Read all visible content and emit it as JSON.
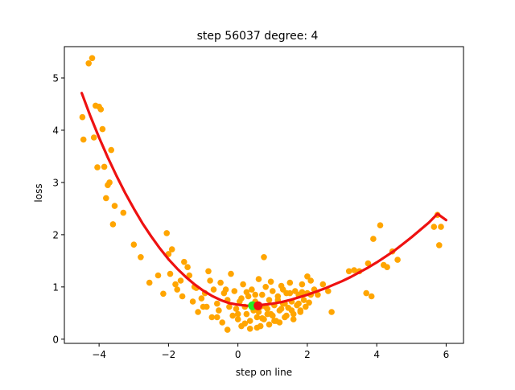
{
  "chart_data": {
    "type": "scatter",
    "title": "step 56037   degree: 4",
    "xlabel": "step on line",
    "ylabel": "loss",
    "xlim": [
      -5.0,
      6.5
    ],
    "ylim": [
      -0.08,
      5.6
    ],
    "xticks": [
      -4,
      -2,
      0,
      2,
      4,
      6
    ],
    "xtick_labels": [
      "−4",
      "−2",
      "0",
      "2",
      "4",
      "6"
    ],
    "yticks": [
      0,
      1,
      2,
      3,
      4,
      5
    ],
    "ytick_labels": [
      "0",
      "1",
      "2",
      "3",
      "4",
      "5"
    ],
    "grid": false,
    "legend": "none",
    "colors": {
      "points": "#ffa500",
      "curve": "#ee1111",
      "current_marker": "#22ee22",
      "minimum_marker": "#ee1111",
      "axes": "#000000"
    },
    "series": [
      {
        "kind": "points",
        "x": [
          -4.3,
          -4.2,
          -4.1,
          -4.0,
          -3.95,
          -4.48,
          -4.45,
          -4.15,
          -3.9,
          -3.85,
          -3.75,
          -3.55,
          -4.05,
          -3.65,
          -3.7,
          -3.8,
          -3.6,
          -3.3,
          -3.0,
          -2.8,
          -2.55,
          -2.3,
          -2.05,
          -1.95,
          -1.9,
          -1.55,
          -1.45,
          -2.15,
          -2.0,
          -1.8,
          -1.75,
          -1.65,
          -1.6,
          -1.4,
          -1.3,
          -1.2,
          -1.15,
          -1.05,
          -0.95,
          -0.9,
          -0.8,
          -0.75,
          -0.7,
          -0.6,
          -0.55,
          -0.5,
          -0.45,
          -0.4,
          -0.3,
          -0.25,
          -0.2,
          -0.15,
          -0.1,
          -0.05,
          0.0,
          0.05,
          0.1,
          0.15,
          0.2,
          0.25,
          0.3,
          0.35,
          0.4,
          0.45,
          0.5,
          0.55,
          0.6,
          0.65,
          0.7,
          0.75,
          0.8,
          0.85,
          0.9,
          0.95,
          1.0,
          1.05,
          1.1,
          1.15,
          1.2,
          1.25,
          1.3,
          1.35,
          1.4,
          1.45,
          1.5,
          1.55,
          1.6,
          1.65,
          1.7,
          1.75,
          1.8,
          1.85,
          1.9,
          1.95,
          2.0,
          2.05,
          2.1,
          2.2,
          2.3,
          2.45,
          2.6,
          2.7,
          0.75,
          -0.3,
          0.2,
          0.55,
          0.9,
          1.2,
          0.35,
          1.6,
          -0.6,
          -1.0,
          0.0,
          0.65,
          1.05,
          1.4,
          1.8,
          0.45,
          0.85,
          1.25,
          1.75,
          0.1,
          1.5,
          -0.35,
          2.0,
          3.2,
          3.35,
          3.7,
          3.85,
          4.1,
          4.2,
          4.6,
          3.75,
          3.5,
          3.9,
          4.3,
          4.45,
          5.65,
          5.75,
          5.85,
          5.8,
          2.1,
          1.85,
          1.3,
          0.7,
          0.5,
          0.95,
          1.15,
          -0.85,
          -1.25,
          0.25,
          1.35,
          1.55,
          0.8,
          1.0,
          0.6
        ],
        "y": [
          5.28,
          5.38,
          4.47,
          4.45,
          4.4,
          4.25,
          3.82,
          3.86,
          4.02,
          3.3,
          2.95,
          2.55,
          3.29,
          3.62,
          3.0,
          2.7,
          2.2,
          2.42,
          1.81,
          1.57,
          1.08,
          1.22,
          2.03,
          1.25,
          1.72,
          1.48,
          1.38,
          0.87,
          1.63,
          1.05,
          0.95,
          1.12,
          0.82,
          1.22,
          0.72,
          0.98,
          0.52,
          0.78,
          0.88,
          0.62,
          1.12,
          0.42,
          0.95,
          0.68,
          0.55,
          1.08,
          0.32,
          0.88,
          0.75,
          0.62,
          1.25,
          0.45,
          0.92,
          0.58,
          0.38,
          0.72,
          0.25,
          1.05,
          0.62,
          0.48,
          0.82,
          0.35,
          0.95,
          0.55,
          0.72,
          0.42,
          1.15,
          0.62,
          0.85,
          0.38,
          1.0,
          0.58,
          0.75,
          0.48,
          0.92,
          0.65,
          0.35,
          0.82,
          0.55,
          1.02,
          0.68,
          0.42,
          0.88,
          0.6,
          1.08,
          0.72,
          0.48,
          0.92,
          0.65,
          0.85,
          0.52,
          1.05,
          0.75,
          0.62,
          0.88,
          0.7,
          1.12,
          0.95,
          0.85,
          1.05,
          0.92,
          0.52,
          1.57,
          0.18,
          0.3,
          0.22,
          0.28,
          0.32,
          0.2,
          0.38,
          0.42,
          0.62,
          0.48,
          0.25,
          0.35,
          0.45,
          0.55,
          0.65,
          0.48,
          0.58,
          0.68,
          0.78,
          0.88,
          0.95,
          1.2,
          1.3,
          1.32,
          0.88,
          0.82,
          2.18,
          1.42,
          1.52,
          1.45,
          1.3,
          1.92,
          1.38,
          1.68,
          2.15,
          2.38,
          2.15,
          1.8,
          0.85,
          0.9,
          0.95,
          0.4,
          0.85,
          1.1,
          0.75,
          1.3,
          1.0,
          0.9,
          0.68,
          0.55,
          0.62,
          0.45,
          0.52
        ]
      },
      {
        "kind": "curve",
        "name": "degree 4 fit",
        "x": [
          -4.5,
          -4.25,
          -4.0,
          -3.75,
          -3.5,
          -3.25,
          -3.0,
          -2.75,
          -2.5,
          -2.25,
          -2.0,
          -1.75,
          -1.5,
          -1.25,
          -1.0,
          -0.75,
          -0.5,
          -0.25,
          0.0,
          0.25,
          0.5,
          0.75,
          1.0,
          1.25,
          1.5,
          1.75,
          2.0,
          2.25,
          2.5,
          2.75,
          3.0,
          3.25,
          3.5,
          3.75,
          4.0,
          4.25,
          4.5,
          4.75,
          5.0,
          5.25,
          5.5,
          5.75,
          6.0
        ],
        "y": [
          4.71,
          4.27,
          3.86,
          3.48,
          3.13,
          2.8,
          2.5,
          2.22,
          1.97,
          1.74,
          1.53,
          1.35,
          1.19,
          1.05,
          0.93,
          0.83,
          0.75,
          0.69,
          0.66,
          0.64,
          0.64,
          0.66,
          0.68,
          0.71,
          0.75,
          0.8,
          0.85,
          0.91,
          0.97,
          1.04,
          1.11,
          1.19,
          1.28,
          1.37,
          1.47,
          1.58,
          1.69,
          1.82,
          1.95,
          2.09,
          2.23,
          2.4,
          2.28
        ]
      }
    ],
    "markers": [
      {
        "name": "current",
        "x": 0.42,
        "y": 0.64,
        "color": "#22ee22"
      },
      {
        "name": "minimum",
        "x": 0.58,
        "y": 0.64,
        "color": "#ee1111"
      }
    ]
  }
}
